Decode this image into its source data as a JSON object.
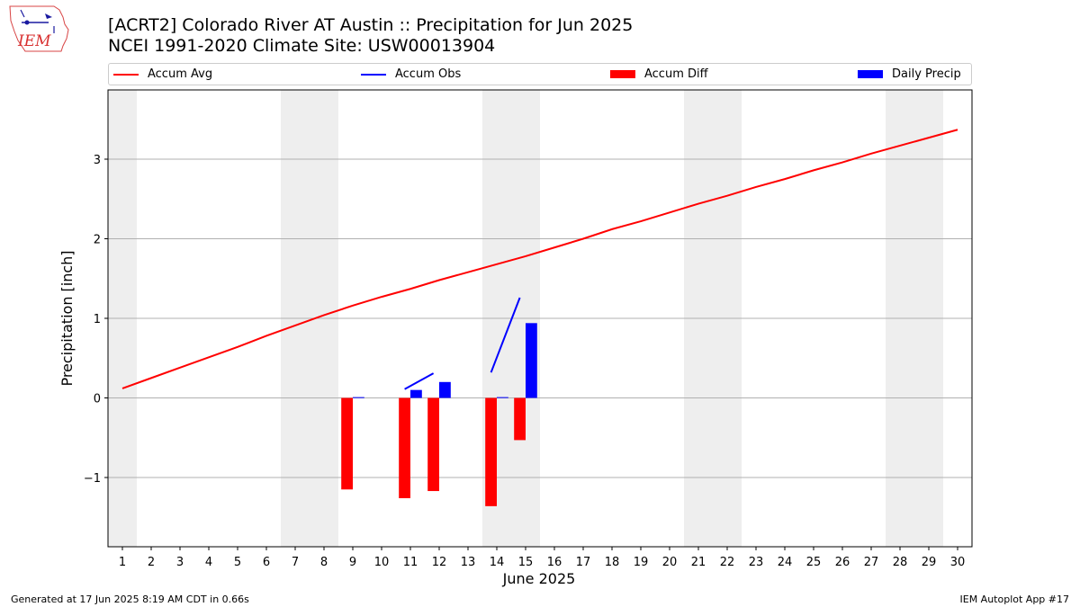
{
  "header": {
    "logo_text": "IEM",
    "title_line1": "[ACRT2] Colorado River  AT Austin :: Precipitation for Jun 2025",
    "title_line2": "NCEI 1991-2020 Climate Site: USW00013904"
  },
  "legend": {
    "placement": "top (above plot, full width)",
    "items": [
      {
        "label": "Accum Avg",
        "color": "#ff0000",
        "kind": "line"
      },
      {
        "label": "Accum Obs",
        "color": "#0000ff",
        "kind": "line"
      },
      {
        "label": "Accum Diff",
        "color": "#ff0000",
        "kind": "bar"
      },
      {
        "label": "Daily Precip",
        "color": "#0000ff",
        "kind": "bar"
      }
    ]
  },
  "footer": {
    "left": "Generated at 17 Jun 2025 8:19 AM CDT in 0.66s",
    "right": "IEM Autoplot App #17"
  },
  "chart_data": {
    "type": "bar",
    "title": "[ACRT2] Colorado River  AT Austin :: Precipitation for Jun 2025",
    "subtitle": "NCEI 1991-2020 Climate Site: USW00013904",
    "xlabel": "June 2025",
    "ylabel": "Precipitation [inch]",
    "xlim": [
      0.5,
      30.5
    ],
    "ylim": [
      -1.87,
      3.87
    ],
    "yticks": [
      -1,
      0,
      1,
      2,
      3
    ],
    "ytick_labels": [
      "−1",
      "0",
      "1",
      "2",
      "3"
    ],
    "grid": "horizontal",
    "weekend_shading_days": [
      1,
      7,
      8,
      14,
      15,
      21,
      22,
      28,
      29
    ],
    "x": [
      1,
      2,
      3,
      4,
      5,
      6,
      7,
      8,
      9,
      10,
      11,
      12,
      13,
      14,
      15,
      16,
      17,
      18,
      19,
      20,
      21,
      22,
      23,
      24,
      25,
      26,
      27,
      28,
      29,
      30
    ],
    "series": [
      {
        "name": "Accum Avg",
        "kind": "line",
        "color": "#ff0000",
        "x": [
          1,
          2,
          3,
          4,
          5,
          6,
          7,
          8,
          9,
          10,
          11,
          12,
          13,
          14,
          15,
          16,
          17,
          18,
          19,
          20,
          21,
          22,
          23,
          24,
          25,
          26,
          27,
          28,
          29,
          30
        ],
        "values": [
          0.12,
          0.25,
          0.38,
          0.51,
          0.64,
          0.78,
          0.91,
          1.04,
          1.16,
          1.27,
          1.37,
          1.48,
          1.58,
          1.68,
          1.78,
          1.89,
          2.0,
          2.12,
          2.22,
          2.33,
          2.44,
          2.54,
          2.65,
          2.75,
          2.86,
          2.96,
          3.07,
          3.17,
          3.27,
          3.37
        ]
      },
      {
        "name": "Accum Obs",
        "kind": "line",
        "color": "#0000ff",
        "x": [
          9,
          10,
          11,
          12,
          13,
          14,
          15
        ],
        "values": [
          0.01,
          null,
          0.11,
          0.31,
          null,
          0.32,
          1.26
        ]
      },
      {
        "name": "Accum Diff",
        "kind": "bar",
        "color": "#ff0000",
        "x": [
          9,
          11,
          12,
          14,
          15
        ],
        "values": [
          -1.15,
          -1.26,
          -1.17,
          -1.36,
          -0.53
        ]
      },
      {
        "name": "Daily Precip",
        "kind": "bar",
        "color": "#0000ff",
        "x": [
          9,
          11,
          12,
          14,
          15
        ],
        "values": [
          0.01,
          0.1,
          0.2,
          0.01,
          0.94
        ]
      }
    ]
  }
}
